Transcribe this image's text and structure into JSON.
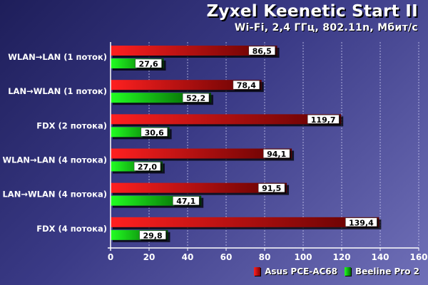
{
  "chart_data": {
    "type": "bar",
    "orientation": "horizontal",
    "title": "Zyxel Keenetic Start II",
    "subtitle": "Wi-Fi, 2,4 ГГц, 802.11n, Мбит/с",
    "categories": [
      "WLAN→LAN (1 поток)",
      "LAN→WLAN (1 поток)",
      "FDX (2 потока)",
      "WLAN→LAN (4 потока)",
      "LAN→WLAN (4 потока)",
      "FDX (4 потока)"
    ],
    "series": [
      {
        "name": "Asus PCE-AC68",
        "color": "#e01010",
        "values": [
          86.5,
          78.4,
          119.7,
          94.1,
          91.5,
          139.4
        ],
        "labels": [
          "86,5",
          "78,4",
          "119,7",
          "94,1",
          "91,5",
          "139,4"
        ]
      },
      {
        "name": "Beeline Pro 2",
        "color": "#10c010",
        "values": [
          27.6,
          52.2,
          30.6,
          27.0,
          47.1,
          29.8
        ],
        "labels": [
          "27,6",
          "52,2",
          "30,6",
          "27,0",
          "47,1",
          "29,8"
        ]
      }
    ],
    "xlim": [
      0,
      160
    ],
    "xticks": [
      0,
      20,
      40,
      60,
      80,
      100,
      120,
      140,
      160
    ],
    "grid": true,
    "legend_position": "bottom-right"
  }
}
